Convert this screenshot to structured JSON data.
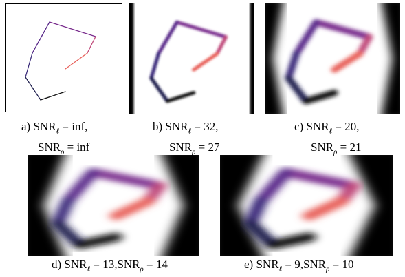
{
  "notation": {
    "snr": "SNR",
    "l": "ℓ",
    "rho": "ρ",
    "eq": "=",
    "sep": ","
  },
  "panels": [
    {
      "label": "a)",
      "snr_l": "inf",
      "snr_rho": "inf"
    },
    {
      "label": "b)",
      "snr_l": 32,
      "snr_rho": 27
    },
    {
      "label": "c)",
      "snr_l": 20,
      "snr_rho": 21
    },
    {
      "label": "d)",
      "snr_l": 13,
      "snr_rho": 14
    },
    {
      "label": "e)",
      "snr_l": 9,
      "snr_rho": 10
    }
  ]
}
